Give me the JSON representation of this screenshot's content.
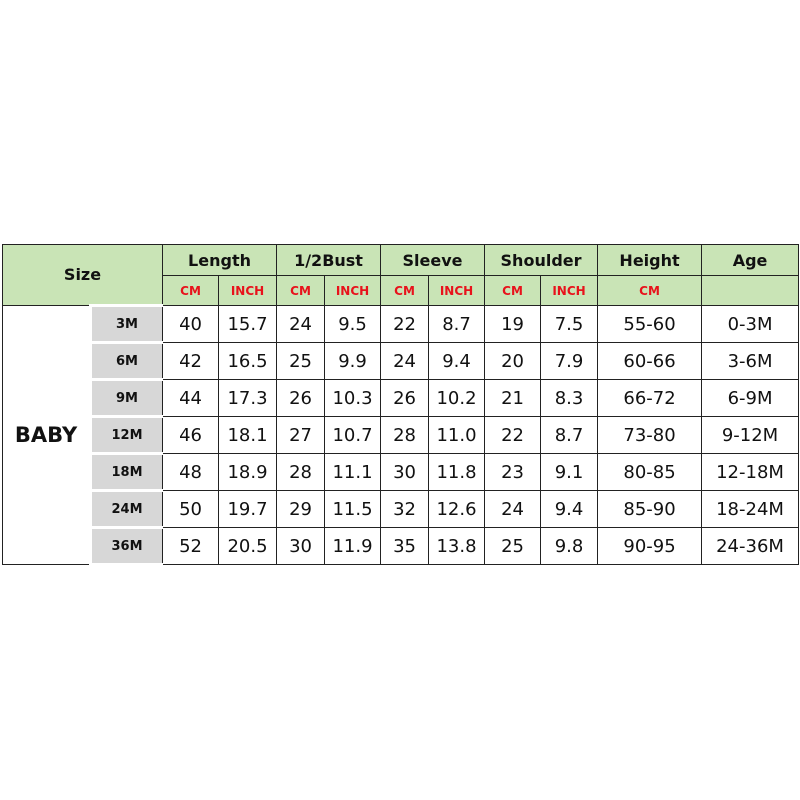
{
  "header": {
    "size": "Size",
    "groups": [
      "Length",
      "1/2Bust",
      "Sleeve",
      "Shoulder",
      "Height",
      "Age"
    ],
    "units": [
      "CM",
      "INCH",
      "CM",
      "INCH",
      "CM",
      "INCH",
      "CM",
      "INCH",
      "CM",
      ""
    ]
  },
  "category": "BABY",
  "rows": [
    [
      "3M",
      "40",
      "15.7",
      "24",
      "9.5",
      "22",
      "8.7",
      "19",
      "7.5",
      "55-60",
      "0-3M"
    ],
    [
      "6M",
      "42",
      "16.5",
      "25",
      "9.9",
      "24",
      "9.4",
      "20",
      "7.9",
      "60-66",
      "3-6M"
    ],
    [
      "9M",
      "44",
      "17.3",
      "26",
      "10.3",
      "26",
      "10.2",
      "21",
      "8.3",
      "66-72",
      "6-9M"
    ],
    [
      "12M",
      "46",
      "18.1",
      "27",
      "10.7",
      "28",
      "11.0",
      "22",
      "8.7",
      "73-80",
      "9-12M"
    ],
    [
      "18M",
      "48",
      "18.9",
      "28",
      "11.1",
      "30",
      "11.8",
      "23",
      "9.1",
      "80-85",
      "12-18M"
    ],
    [
      "24M",
      "50",
      "19.7",
      "29",
      "11.5",
      "32",
      "12.6",
      "24",
      "9.4",
      "85-90",
      "18-24M"
    ],
    [
      "36M",
      "52",
      "20.5",
      "30",
      "11.9",
      "35",
      "13.8",
      "25",
      "9.8",
      "90-95",
      "24-36M"
    ]
  ],
  "colors": {
    "header_bg": "#c9e4b6",
    "size_bg": "#d7d7d7",
    "unit_text": "#e8121b"
  }
}
